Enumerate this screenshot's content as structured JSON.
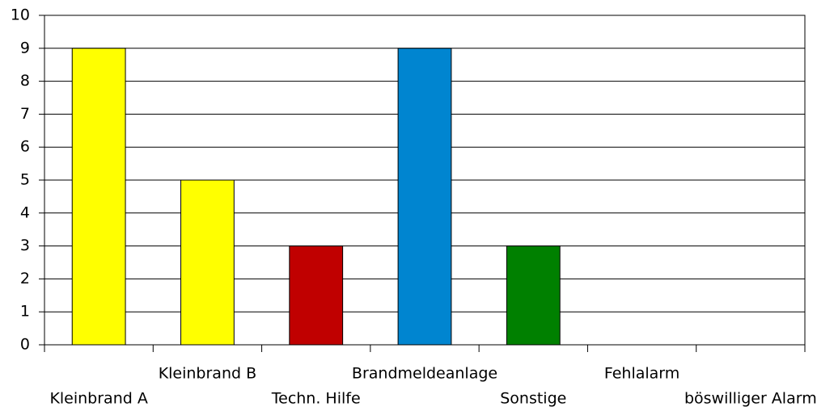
{
  "chart_data": {
    "type": "bar",
    "categories": [
      "Kleinbrand A",
      "Kleinbrand B",
      "Techn. Hilfe",
      "Brandmeldeanlage",
      "Sonstige",
      "Fehlalarm",
      "böswilliger Alarm"
    ],
    "values": [
      9,
      5,
      3,
      9,
      3,
      0,
      0
    ],
    "colors": [
      "#ffff00",
      "#ffff00",
      "#c00000",
      "#0085d0",
      "#008000",
      null,
      null
    ],
    "ylim": [
      0,
      10
    ],
    "yticks": [
      0,
      1,
      2,
      3,
      4,
      5,
      6,
      7,
      8,
      9,
      10
    ],
    "grid": true
  }
}
